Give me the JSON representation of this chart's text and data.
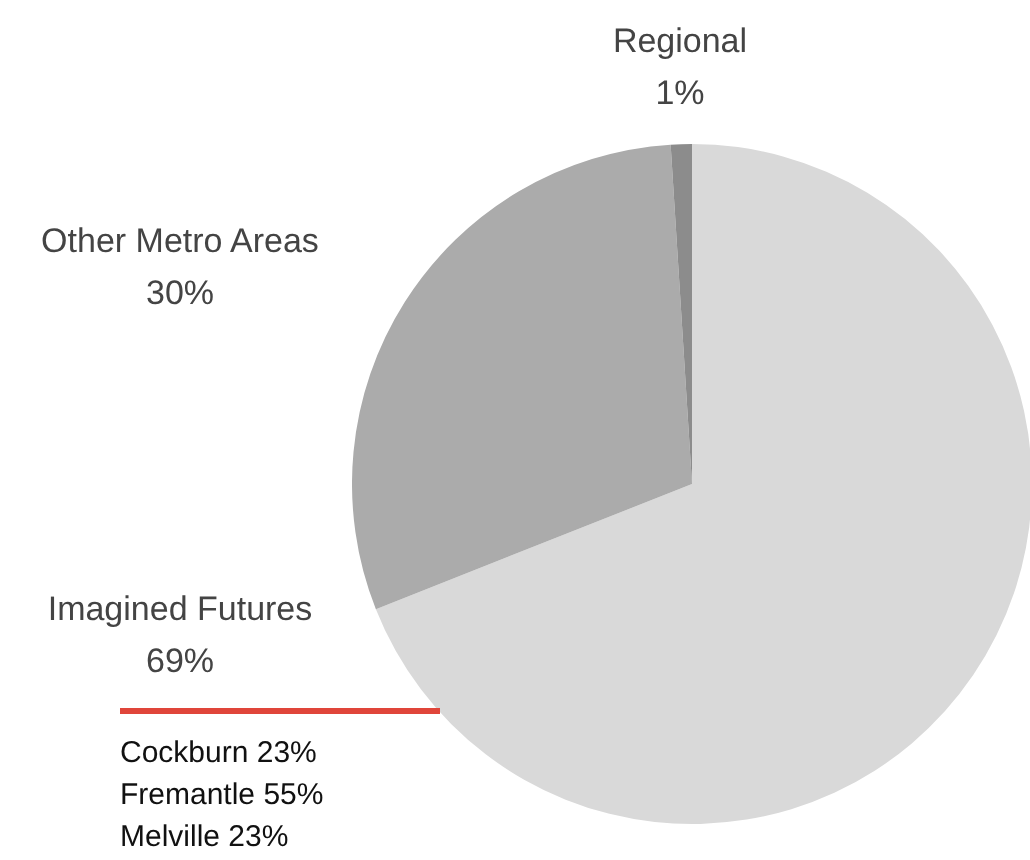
{
  "chart_data": {
    "type": "pie",
    "categories": [
      "Imagined Futures",
      "Other Metro Areas",
      "Regional"
    ],
    "values": [
      69,
      30,
      1
    ],
    "colors": [
      "#d9d9d9",
      "#ababab",
      "#8c8c8c"
    ],
    "value_labels": [
      "69%",
      "30%",
      "1%"
    ],
    "annotations": [
      "Cockburn 23%",
      "Fremantle 55%",
      "Melville 23%"
    ]
  }
}
